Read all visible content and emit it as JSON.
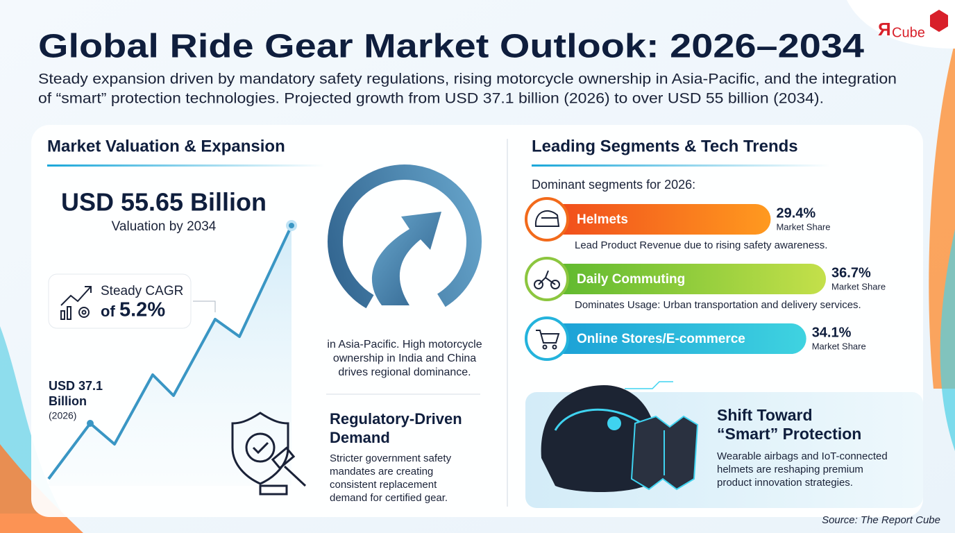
{
  "header": {
    "title": "Global Ride Gear Market Outlook: 2026–2034",
    "subtitle_lines": [
      "Steady expansion driven by mandatory safety regulations, rising motorcycle ownership in Asia-Pacific, and the integration",
      "of “smart” protection technologies. Projected growth from USD 37.1 billion (2026) to over USD 55 billion (2034)."
    ]
  },
  "logo": {
    "mark": "Я",
    "text": "Cube"
  },
  "valuation": {
    "heading": "Market Valuation & Expansion",
    "amount": "USD 55.65 Billion",
    "amount_note": "Valuation by 2034",
    "cagr": {
      "label": "Steady CAGR",
      "prefix": "of",
      "rate": "5.2%"
    },
    "start": {
      "lines": [
        "USD 37.1",
        "Billion"
      ],
      "year": "(2026)"
    },
    "region_lines": [
      "in Asia-Pacific. High motorcycle",
      "ownership in India and China",
      "drives regional dominance."
    ]
  },
  "regulatory": {
    "title_lines": [
      "Regulatory-Driven",
      "Demand"
    ],
    "body_lines": [
      "Stricter government safety",
      "mandates are creating",
      "consistent replacement",
      "demand for certified gear."
    ]
  },
  "segments": {
    "heading": "Leading Segments & Tech Trends",
    "intro": "Dominant segments for 2026:",
    "items": [
      {
        "name": "Helmets",
        "share": {
          "value": 29.4,
          "label": "29.4%"
        },
        "share_note": "Market Share",
        "description": "Lead Product Revenue due to rising safety awareness."
      },
      {
        "name": "Daily Commuting",
        "share": {
          "value": 36.7,
          "label": "36.7%"
        },
        "share_note": "Market Share",
        "description": "Dominates Usage: Urban transportation and delivery services."
      },
      {
        "name": "Online Stores/E-commerce",
        "share": {
          "value": 34.1,
          "label": "34.1%"
        },
        "share_note": "Market Share"
      }
    ]
  },
  "smart": {
    "title_lines": [
      "Shift Toward",
      "“Smart” Protection"
    ],
    "body_lines": [
      "Wearable airbags and IoT-connected",
      "helmets are reshaping premium",
      "product innovation strategies."
    ]
  },
  "source": "Source: The Report Cube"
}
